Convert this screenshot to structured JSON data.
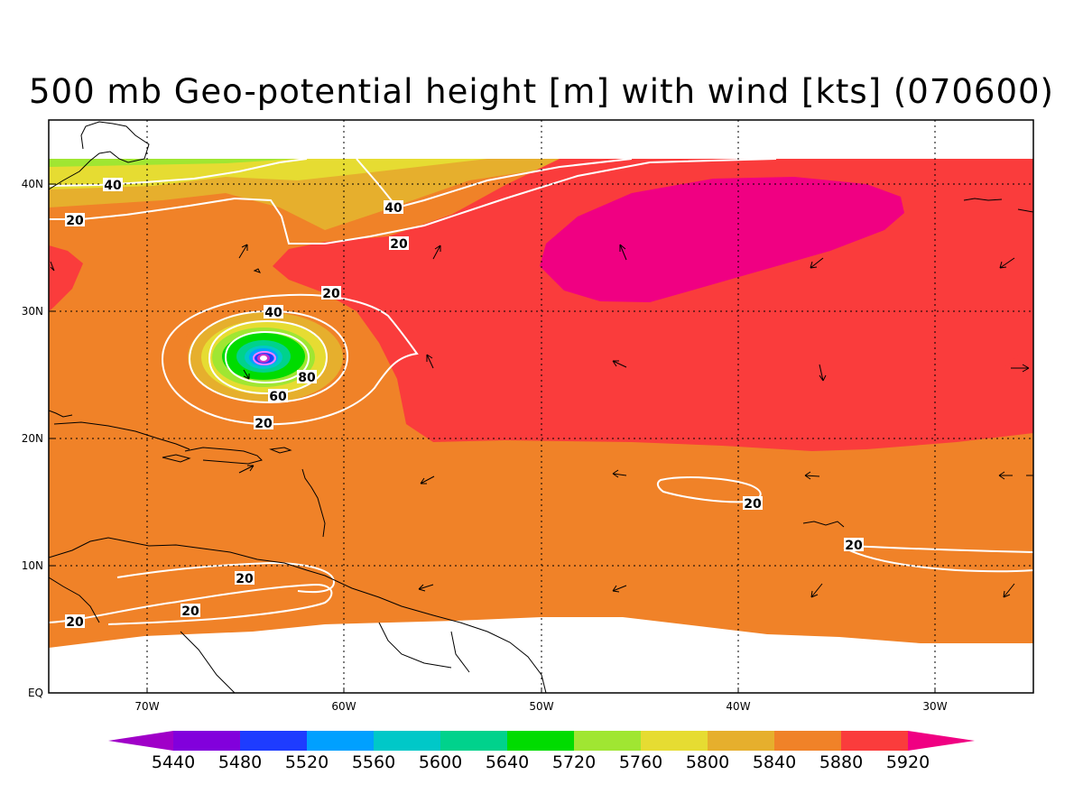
{
  "title": "500 mb Geo-potential height [m] with wind [kts] (070600)",
  "colors": {
    "c5440": "#a000c8",
    "c5480": "#8200dc",
    "c5520": "#1e3cff",
    "c5560": "#00a0ff",
    "c5600": "#00c8c8",
    "c5640": "#00d28c",
    "c5720": "#00dc00",
    "c5760": "#a0e632",
    "c5800": "#e6dc32",
    "c5840": "#e6af2d",
    "c5880": "#f08228",
    "c5920": "#fa3c3c",
    "c_over": "#f00082",
    "land_outline": "#000000",
    "wind_contour": "#ffffff"
  },
  "map": {
    "lon_labels": [
      "70W",
      "60W",
      "50W",
      "40W",
      "30W"
    ],
    "lat_labels": [
      "EQ",
      "10N",
      "20N",
      "30N",
      "40N"
    ],
    "wind_contour_labels": [
      {
        "id": "w40-north",
        "text": "40"
      },
      {
        "id": "w20-nw",
        "text": "20"
      },
      {
        "id": "w40-mid",
        "text": "40"
      },
      {
        "id": "w20-mid",
        "text": "20"
      },
      {
        "id": "w20-hurr-outer-top",
        "text": "20"
      },
      {
        "id": "w40-hurr",
        "text": "40"
      },
      {
        "id": "w80-hurr",
        "text": "80"
      },
      {
        "id": "w60-hurr",
        "text": "60"
      },
      {
        "id": "w20-hurr-bottom",
        "text": "20"
      },
      {
        "id": "w20-east-a",
        "text": "20"
      },
      {
        "id": "w20-east-b",
        "text": "20"
      },
      {
        "id": "w20-carib-a",
        "text": "20"
      },
      {
        "id": "w20-carib-b",
        "text": "20"
      },
      {
        "id": "w20-carib-c",
        "text": "20"
      }
    ]
  },
  "colorbar": {
    "labels": [
      "5440",
      "5480",
      "5520",
      "5560",
      "5600",
      "5640",
      "5720",
      "5760",
      "5800",
      "5840",
      "5880",
      "5920"
    ],
    "colors": [
      "#a000c8",
      "#8200dc",
      "#1e3cff",
      "#00a0ff",
      "#00c8c8",
      "#00d28c",
      "#00dc00",
      "#a0e632",
      "#e6dc32",
      "#e6af2d",
      "#f08228",
      "#fa3c3c",
      "#f00082"
    ]
  }
}
